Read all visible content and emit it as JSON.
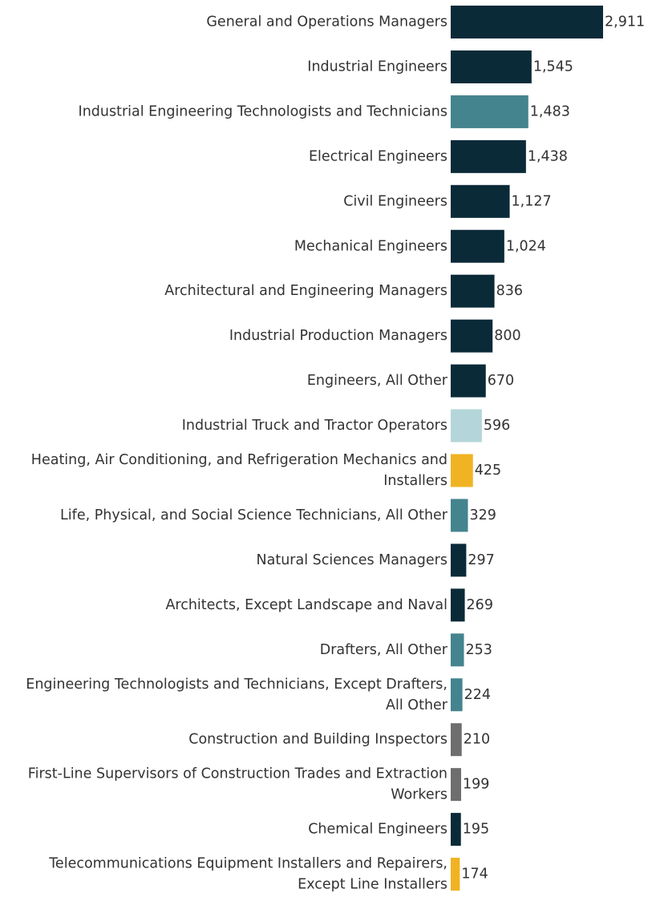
{
  "chart_data": {
    "type": "bar",
    "orientation": "horizontal",
    "title": "",
    "xlabel": "",
    "ylabel": "",
    "xlim": [
      0,
      2911
    ],
    "grid": false,
    "legend": "none",
    "categories": [
      [
        "General and Operations Managers"
      ],
      [
        "Industrial Engineers"
      ],
      [
        "Industrial Engineering Technologists and Technicians"
      ],
      [
        "Electrical Engineers"
      ],
      [
        "Civil Engineers"
      ],
      [
        "Mechanical Engineers"
      ],
      [
        "Architectural and Engineering Managers"
      ],
      [
        "Industrial Production Managers"
      ],
      [
        "Engineers, All Other"
      ],
      [
        "Industrial Truck and Tractor Operators"
      ],
      [
        "Heating, Air Conditioning, and Refrigeration Mechanics and",
        "Installers"
      ],
      [
        "Life, Physical, and Social Science Technicians, All Other"
      ],
      [
        "Natural Sciences Managers"
      ],
      [
        "Architects, Except Landscape and Naval"
      ],
      [
        "Drafters, All Other"
      ],
      [
        "Engineering Technologists and Technicians, Except Drafters,",
        "All Other"
      ],
      [
        "Construction and Building Inspectors"
      ],
      [
        "First-Line Supervisors of Construction Trades and Extraction",
        "Workers"
      ],
      [
        "Chemical Engineers"
      ],
      [
        "Telecommunications Equipment Installers and Repairers,",
        "Except Line Installers"
      ]
    ],
    "values": [
      2911,
      1545,
      1483,
      1438,
      1127,
      1024,
      836,
      800,
      670,
      596,
      425,
      329,
      297,
      269,
      253,
      224,
      210,
      199,
      195,
      174
    ],
    "value_labels": [
      "2,911",
      "1,545",
      "1,483",
      "1,438",
      "1,127",
      "1,024",
      "836",
      "800",
      "670",
      "596",
      "425",
      "329",
      "297",
      "269",
      "253",
      "224",
      "210",
      "199",
      "195",
      "174"
    ],
    "bar_colors": [
      "#0b2a38",
      "#0b2a38",
      "#44848e",
      "#0b2a38",
      "#0b2a38",
      "#0b2a38",
      "#0b2a38",
      "#0b2a38",
      "#0b2a38",
      "#b4d6da",
      "#f0b323",
      "#44848e",
      "#0b2a38",
      "#0b2a38",
      "#44848e",
      "#44848e",
      "#6e6e6e",
      "#6e6e6e",
      "#0b2a38",
      "#f0b323"
    ]
  }
}
